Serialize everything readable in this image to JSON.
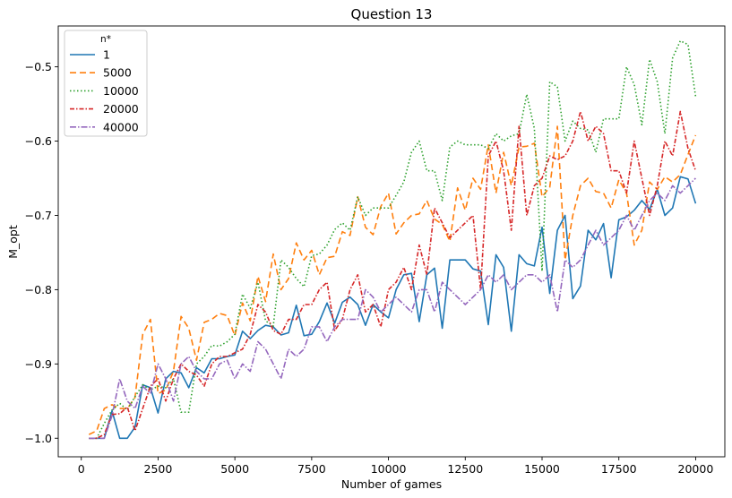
{
  "chart_data": {
    "type": "line",
    "title": "Question 13",
    "xlabel": "Number of games",
    "ylabel": "M_opt",
    "xlim": [
      -750,
      20950
    ],
    "ylim": [
      -1.025,
      -0.445
    ],
    "xticks": [
      0,
      2500,
      5000,
      7500,
      10000,
      12500,
      15000,
      17500,
      20000
    ],
    "yticks": [
      -1.0,
      -0.9,
      -0.8,
      -0.7,
      -0.6,
      -0.5
    ],
    "xtick_labels": [
      "0",
      "2500",
      "5000",
      "7500",
      "10000",
      "12500",
      "15000",
      "17500",
      "20000"
    ],
    "ytick_labels": [
      "−1.0",
      "−0.9",
      "−0.8",
      "−0.7",
      "−0.6",
      "−0.5"
    ],
    "legend": {
      "title": "n*",
      "placement": "top-left"
    },
    "x": [
      250,
      500,
      750,
      1000,
      1250,
      1500,
      1750,
      2000,
      2250,
      2500,
      2750,
      3000,
      3250,
      3500,
      3750,
      4000,
      4250,
      4500,
      4750,
      5000,
      5250,
      5500,
      5750,
      6000,
      6250,
      6500,
      6750,
      7000,
      7250,
      7500,
      7750,
      8000,
      8250,
      8500,
      8750,
      9000,
      9250,
      9500,
      9750,
      10000,
      10250,
      10500,
      10750,
      11000,
      11250,
      11500,
      11750,
      12000,
      12250,
      12500,
      12750,
      13000,
      13250,
      13500,
      13750,
      14000,
      14250,
      14500,
      14750,
      15000,
      15250,
      15500,
      15750,
      16000,
      16250,
      16500,
      16750,
      17000,
      17250,
      17500,
      17750,
      18000,
      18250,
      18500,
      18750,
      19000,
      19250,
      19500,
      19750,
      20000
    ],
    "series": [
      {
        "name": "1",
        "color": "#1f77b4",
        "dash": "solid",
        "values": [
          -1.0,
          -1.0,
          -1.0,
          -0.963,
          -1.0,
          -1.0,
          -0.985,
          -0.928,
          -0.932,
          -0.966,
          -0.92,
          -0.91,
          -0.912,
          -0.932,
          -0.905,
          -0.912,
          -0.893,
          -0.893,
          -0.89,
          -0.888,
          -0.856,
          -0.866,
          -0.855,
          -0.848,
          -0.85,
          -0.861,
          -0.858,
          -0.821,
          -0.862,
          -0.86,
          -0.843,
          -0.818,
          -0.845,
          -0.817,
          -0.81,
          -0.82,
          -0.848,
          -0.82,
          -0.83,
          -0.838,
          -0.8,
          -0.78,
          -0.778,
          -0.843,
          -0.78,
          -0.771,
          -0.852,
          -0.76,
          -0.76,
          -0.76,
          -0.772,
          -0.775,
          -0.847,
          -0.753,
          -0.77,
          -0.856,
          -0.753,
          -0.765,
          -0.768,
          -0.716,
          -0.805,
          -0.72,
          -0.7,
          -0.812,
          -0.795,
          -0.72,
          -0.733,
          -0.711,
          -0.784,
          -0.706,
          -0.702,
          -0.693,
          -0.68,
          -0.692,
          -0.665,
          -0.7,
          -0.69,
          -0.648,
          -0.651,
          -0.684
        ]
      },
      {
        "name": "5000",
        "color": "#ff7f0e",
        "dash": "7,4",
        "values": [
          -0.995,
          -0.99,
          -0.96,
          -0.955,
          -0.96,
          -0.96,
          -0.945,
          -0.86,
          -0.84,
          -0.94,
          -0.935,
          -0.91,
          -0.836,
          -0.852,
          -0.895,
          -0.844,
          -0.84,
          -0.832,
          -0.835,
          -0.862,
          -0.818,
          -0.842,
          -0.782,
          -0.816,
          -0.752,
          -0.8,
          -0.785,
          -0.737,
          -0.76,
          -0.747,
          -0.78,
          -0.757,
          -0.755,
          -0.722,
          -0.727,
          -0.675,
          -0.716,
          -0.726,
          -0.688,
          -0.67,
          -0.725,
          -0.71,
          -0.7,
          -0.698,
          -0.68,
          -0.705,
          -0.712,
          -0.735,
          -0.663,
          -0.693,
          -0.65,
          -0.665,
          -0.605,
          -0.67,
          -0.615,
          -0.66,
          -0.608,
          -0.607,
          -0.603,
          -0.675,
          -0.662,
          -0.58,
          -0.76,
          -0.7,
          -0.66,
          -0.65,
          -0.668,
          -0.67,
          -0.69,
          -0.652,
          -0.67,
          -0.74,
          -0.72,
          -0.655,
          -0.665,
          -0.648,
          -0.655,
          -0.645,
          -0.618,
          -0.592
        ]
      },
      {
        "name": "10000",
        "color": "#2ca02c",
        "dash": "1.5,2.5",
        "values": [
          -1.0,
          -1.0,
          -0.98,
          -0.962,
          -0.953,
          -0.962,
          -0.944,
          -0.928,
          -0.935,
          -0.93,
          -0.932,
          -0.92,
          -0.965,
          -0.965,
          -0.9,
          -0.89,
          -0.875,
          -0.876,
          -0.87,
          -0.86,
          -0.806,
          -0.825,
          -0.79,
          -0.842,
          -0.849,
          -0.76,
          -0.77,
          -0.785,
          -0.796,
          -0.754,
          -0.752,
          -0.74,
          -0.719,
          -0.71,
          -0.72,
          -0.675,
          -0.7,
          -0.69,
          -0.69,
          -0.69,
          -0.673,
          -0.655,
          -0.615,
          -0.6,
          -0.64,
          -0.64,
          -0.68,
          -0.608,
          -0.6,
          -0.605,
          -0.605,
          -0.605,
          -0.61,
          -0.59,
          -0.6,
          -0.593,
          -0.59,
          -0.537,
          -0.583,
          -0.775,
          -0.52,
          -0.527,
          -0.6,
          -0.573,
          -0.583,
          -0.585,
          -0.615,
          -0.57,
          -0.57,
          -0.57,
          -0.5,
          -0.524,
          -0.578,
          -0.49,
          -0.52,
          -0.59,
          -0.488,
          -0.465,
          -0.47,
          -0.54
        ]
      },
      {
        "name": "20000",
        "color": "#d62728",
        "dash": "5,2,1.5,2",
        "values": [
          -1.0,
          -1.0,
          -0.995,
          -0.968,
          -0.967,
          -0.958,
          -0.99,
          -0.96,
          -0.93,
          -0.92,
          -0.95,
          -0.92,
          -0.9,
          -0.91,
          -0.915,
          -0.93,
          -0.9,
          -0.89,
          -0.89,
          -0.885,
          -0.88,
          -0.86,
          -0.82,
          -0.83,
          -0.855,
          -0.86,
          -0.84,
          -0.84,
          -0.82,
          -0.82,
          -0.8,
          -0.79,
          -0.855,
          -0.84,
          -0.8,
          -0.78,
          -0.83,
          -0.82,
          -0.85,
          -0.8,
          -0.79,
          -0.77,
          -0.8,
          -0.74,
          -0.78,
          -0.69,
          -0.71,
          -0.73,
          -0.72,
          -0.71,
          -0.7,
          -0.8,
          -0.62,
          -0.6,
          -0.64,
          -0.72,
          -0.58,
          -0.7,
          -0.66,
          -0.65,
          -0.62,
          -0.625,
          -0.62,
          -0.6,
          -0.56,
          -0.6,
          -0.58,
          -0.59,
          -0.64,
          -0.64,
          -0.67,
          -0.6,
          -0.65,
          -0.7,
          -0.66,
          -0.6,
          -0.62,
          -0.56,
          -0.61,
          -0.64
        ]
      },
      {
        "name": "40000",
        "color": "#9467bd",
        "dash": "7,2,1.5,2",
        "values": [
          -1.0,
          -1.0,
          -1.0,
          -0.97,
          -0.92,
          -0.95,
          -0.96,
          -0.93,
          -0.94,
          -0.9,
          -0.92,
          -0.95,
          -0.9,
          -0.89,
          -0.91,
          -0.92,
          -0.92,
          -0.9,
          -0.895,
          -0.92,
          -0.9,
          -0.91,
          -0.87,
          -0.88,
          -0.9,
          -0.92,
          -0.88,
          -0.89,
          -0.88,
          -0.85,
          -0.85,
          -0.87,
          -0.85,
          -0.84,
          -0.84,
          -0.84,
          -0.8,
          -0.81,
          -0.83,
          -0.82,
          -0.81,
          -0.82,
          -0.83,
          -0.8,
          -0.8,
          -0.83,
          -0.79,
          -0.8,
          -0.81,
          -0.82,
          -0.81,
          -0.8,
          -0.78,
          -0.79,
          -0.78,
          -0.8,
          -0.79,
          -0.78,
          -0.78,
          -0.79,
          -0.78,
          -0.83,
          -0.76,
          -0.77,
          -0.76,
          -0.74,
          -0.72,
          -0.74,
          -0.73,
          -0.72,
          -0.7,
          -0.72,
          -0.7,
          -0.68,
          -0.67,
          -0.68,
          -0.66,
          -0.67,
          -0.66,
          -0.65
        ]
      }
    ]
  }
}
